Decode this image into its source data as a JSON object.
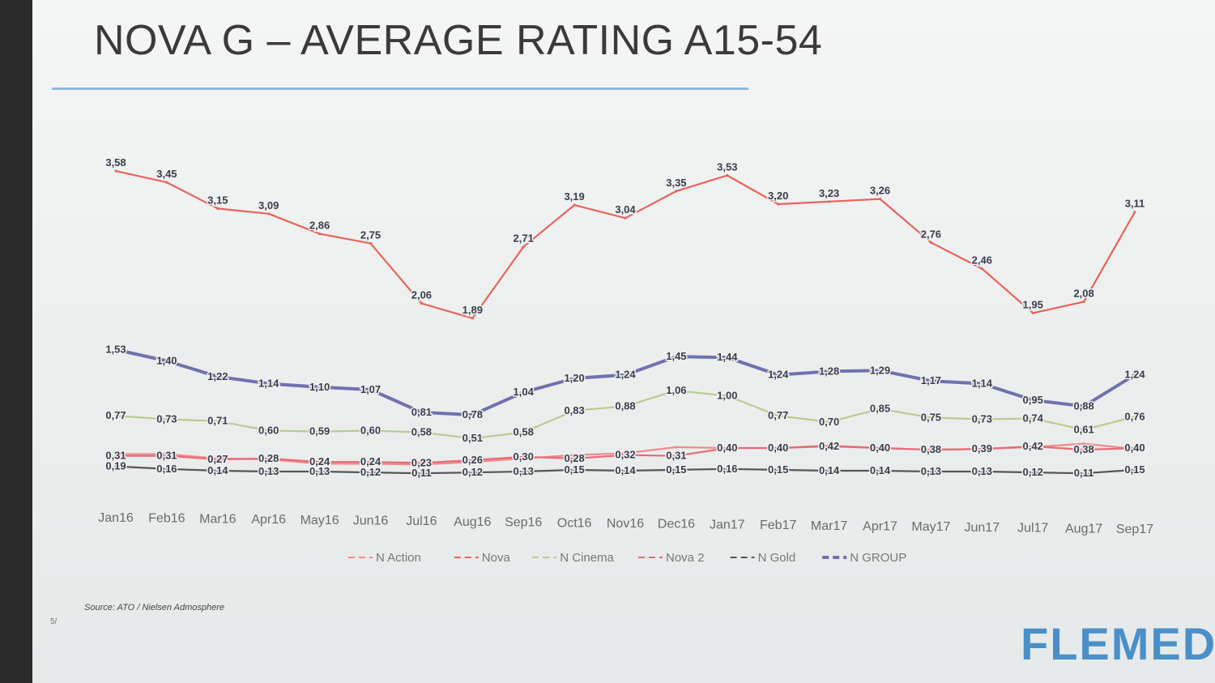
{
  "slide": {
    "title": "NOVA G – AVERAGE RATING A15-54",
    "source": "Source: ATO / Nielsen Admosphere",
    "slide_number": "5/",
    "brand": "FLEMED"
  },
  "chart_data": {
    "type": "line",
    "title": "NOVA G – AVERAGE RATING A15-54",
    "xlabel": "",
    "ylabel": "",
    "ylim": [
      0,
      3.6
    ],
    "grid": false,
    "legend_position": "bottom",
    "categories": [
      "Jan16",
      "Feb16",
      "Mar16",
      "Apr16",
      "May16",
      "Jun16",
      "Jul16",
      "Aug16",
      "Sep16",
      "Oct16",
      "Nov16",
      "Dec16",
      "Jan17",
      "Feb17",
      "Mar17",
      "Apr17",
      "May17",
      "Jun17",
      "Jul17",
      "Aug17",
      "Sep17"
    ],
    "series": [
      {
        "name": "N Action",
        "color": "#f08a8a",
        "style": "dashed",
        "values": [
          0.33,
          0.33,
          0.28,
          0.27,
          0.22,
          0.22,
          0.21,
          0.24,
          0.28,
          0.32,
          0.34,
          0.41,
          0.4,
          0.4,
          0.43,
          0.4,
          0.38,
          0.39,
          0.41,
          0.45,
          0.39
        ],
        "labels": [
          "0,33",
          "0,33",
          "0,28",
          "0,27",
          "0,22",
          "0,22",
          "0,21",
          "0,24",
          "0,28",
          "0,32",
          "0,34",
          "0,41",
          "0,40",
          "0,40",
          "0,43",
          "0,40",
          "0,38",
          "0,39",
          "0,41",
          "0,45",
          "0,39"
        ],
        "show_labels": false
      },
      {
        "name": "Nova",
        "color": "#e8635a",
        "style": "dashed",
        "values": [
          3.58,
          3.45,
          3.15,
          3.09,
          2.86,
          2.75,
          2.06,
          1.89,
          2.71,
          3.19,
          3.04,
          3.35,
          3.53,
          3.2,
          3.23,
          3.26,
          2.76,
          2.46,
          1.95,
          2.08,
          3.11
        ],
        "labels": [
          "3,58",
          "3,45",
          "3,15",
          "3,09",
          "2,86",
          "2,75",
          "2,06",
          "1,89",
          "2,71",
          "3,19",
          "3,04",
          "3,35",
          "3,53",
          "3,20",
          "3,23",
          "3,26",
          "2,76",
          "2,46",
          "1,95",
          "2,08",
          "3,11"
        ],
        "show_labels": true
      },
      {
        "name": "N Cinema",
        "color": "#b7cc8f",
        "style": "dashed",
        "values": [
          0.77,
          0.73,
          0.71,
          0.6,
          0.59,
          0.6,
          0.58,
          0.51,
          0.58,
          0.83,
          0.88,
          1.06,
          1.0,
          0.77,
          0.7,
          0.85,
          0.75,
          0.73,
          0.74,
          0.61,
          0.76
        ],
        "labels": [
          "0,77",
          "0,73",
          "0,71",
          "0,60",
          "0,59",
          "0,60",
          "0,58",
          "0,51",
          "0,58",
          "0,83",
          "0,88",
          "1,06",
          "1,00",
          "0,77",
          "0,70",
          "0,85",
          "0,75",
          "0,73",
          "0,74",
          "0,61",
          "0,76"
        ],
        "show_labels": true
      },
      {
        "name": "Nova 2",
        "color": "#e86a78",
        "style": "dashed",
        "values": [
          0.31,
          0.31,
          0.27,
          0.28,
          0.24,
          0.24,
          0.23,
          0.26,
          0.3,
          0.28,
          0.32,
          0.31,
          0.4,
          0.4,
          0.42,
          0.4,
          0.38,
          0.39,
          0.42,
          0.38,
          0.4
        ],
        "labels": [
          "0,31",
          "0,31",
          "0,27",
          "0,28",
          "0,24",
          "0,24",
          "0,23",
          "0,26",
          "0,30",
          "0,28",
          "0,32",
          "0,31",
          "0,40",
          "0,40",
          "0,42",
          "0,40",
          "0,38",
          "0,39",
          "0,42",
          "0,38",
          "0,40"
        ],
        "show_labels": true
      },
      {
        "name": "N Gold",
        "color": "#555555",
        "style": "dashed",
        "values": [
          0.19,
          0.16,
          0.14,
          0.13,
          0.13,
          0.12,
          0.11,
          0.12,
          0.13,
          0.15,
          0.14,
          0.15,
          0.16,
          0.15,
          0.14,
          0.14,
          0.13,
          0.13,
          0.12,
          0.11,
          0.15
        ],
        "labels": [
          "0,19",
          "0,16",
          "0,14",
          "0,13",
          "0,13",
          "0,12",
          "0,11",
          "0,12",
          "0,13",
          "0,15",
          "0,14",
          "0,15",
          "0,16",
          "0,15",
          "0,14",
          "0,14",
          "0,13",
          "0,13",
          "0,12",
          "0,11",
          "0,15"
        ],
        "show_labels": true
      },
      {
        "name": "N GROUP",
        "color": "#6f72ad",
        "style": "solid-bold",
        "values": [
          1.53,
          1.4,
          1.22,
          1.14,
          1.1,
          1.07,
          0.81,
          0.78,
          1.04,
          1.2,
          1.24,
          1.45,
          1.44,
          1.24,
          1.28,
          1.29,
          1.17,
          1.14,
          0.95,
          0.88,
          1.24
        ],
        "labels": [
          "1,53",
          "1,40",
          "1,22",
          "1,14",
          "1,10",
          "1,07",
          "0,81",
          "0,78",
          "1,04",
          "1,20",
          "1,24",
          "1,45",
          "1,44",
          "1,24",
          "1,28",
          "1,29",
          "1,17",
          "1,14",
          "0,95",
          "0,88",
          "1,24"
        ],
        "show_labels": true
      }
    ]
  }
}
